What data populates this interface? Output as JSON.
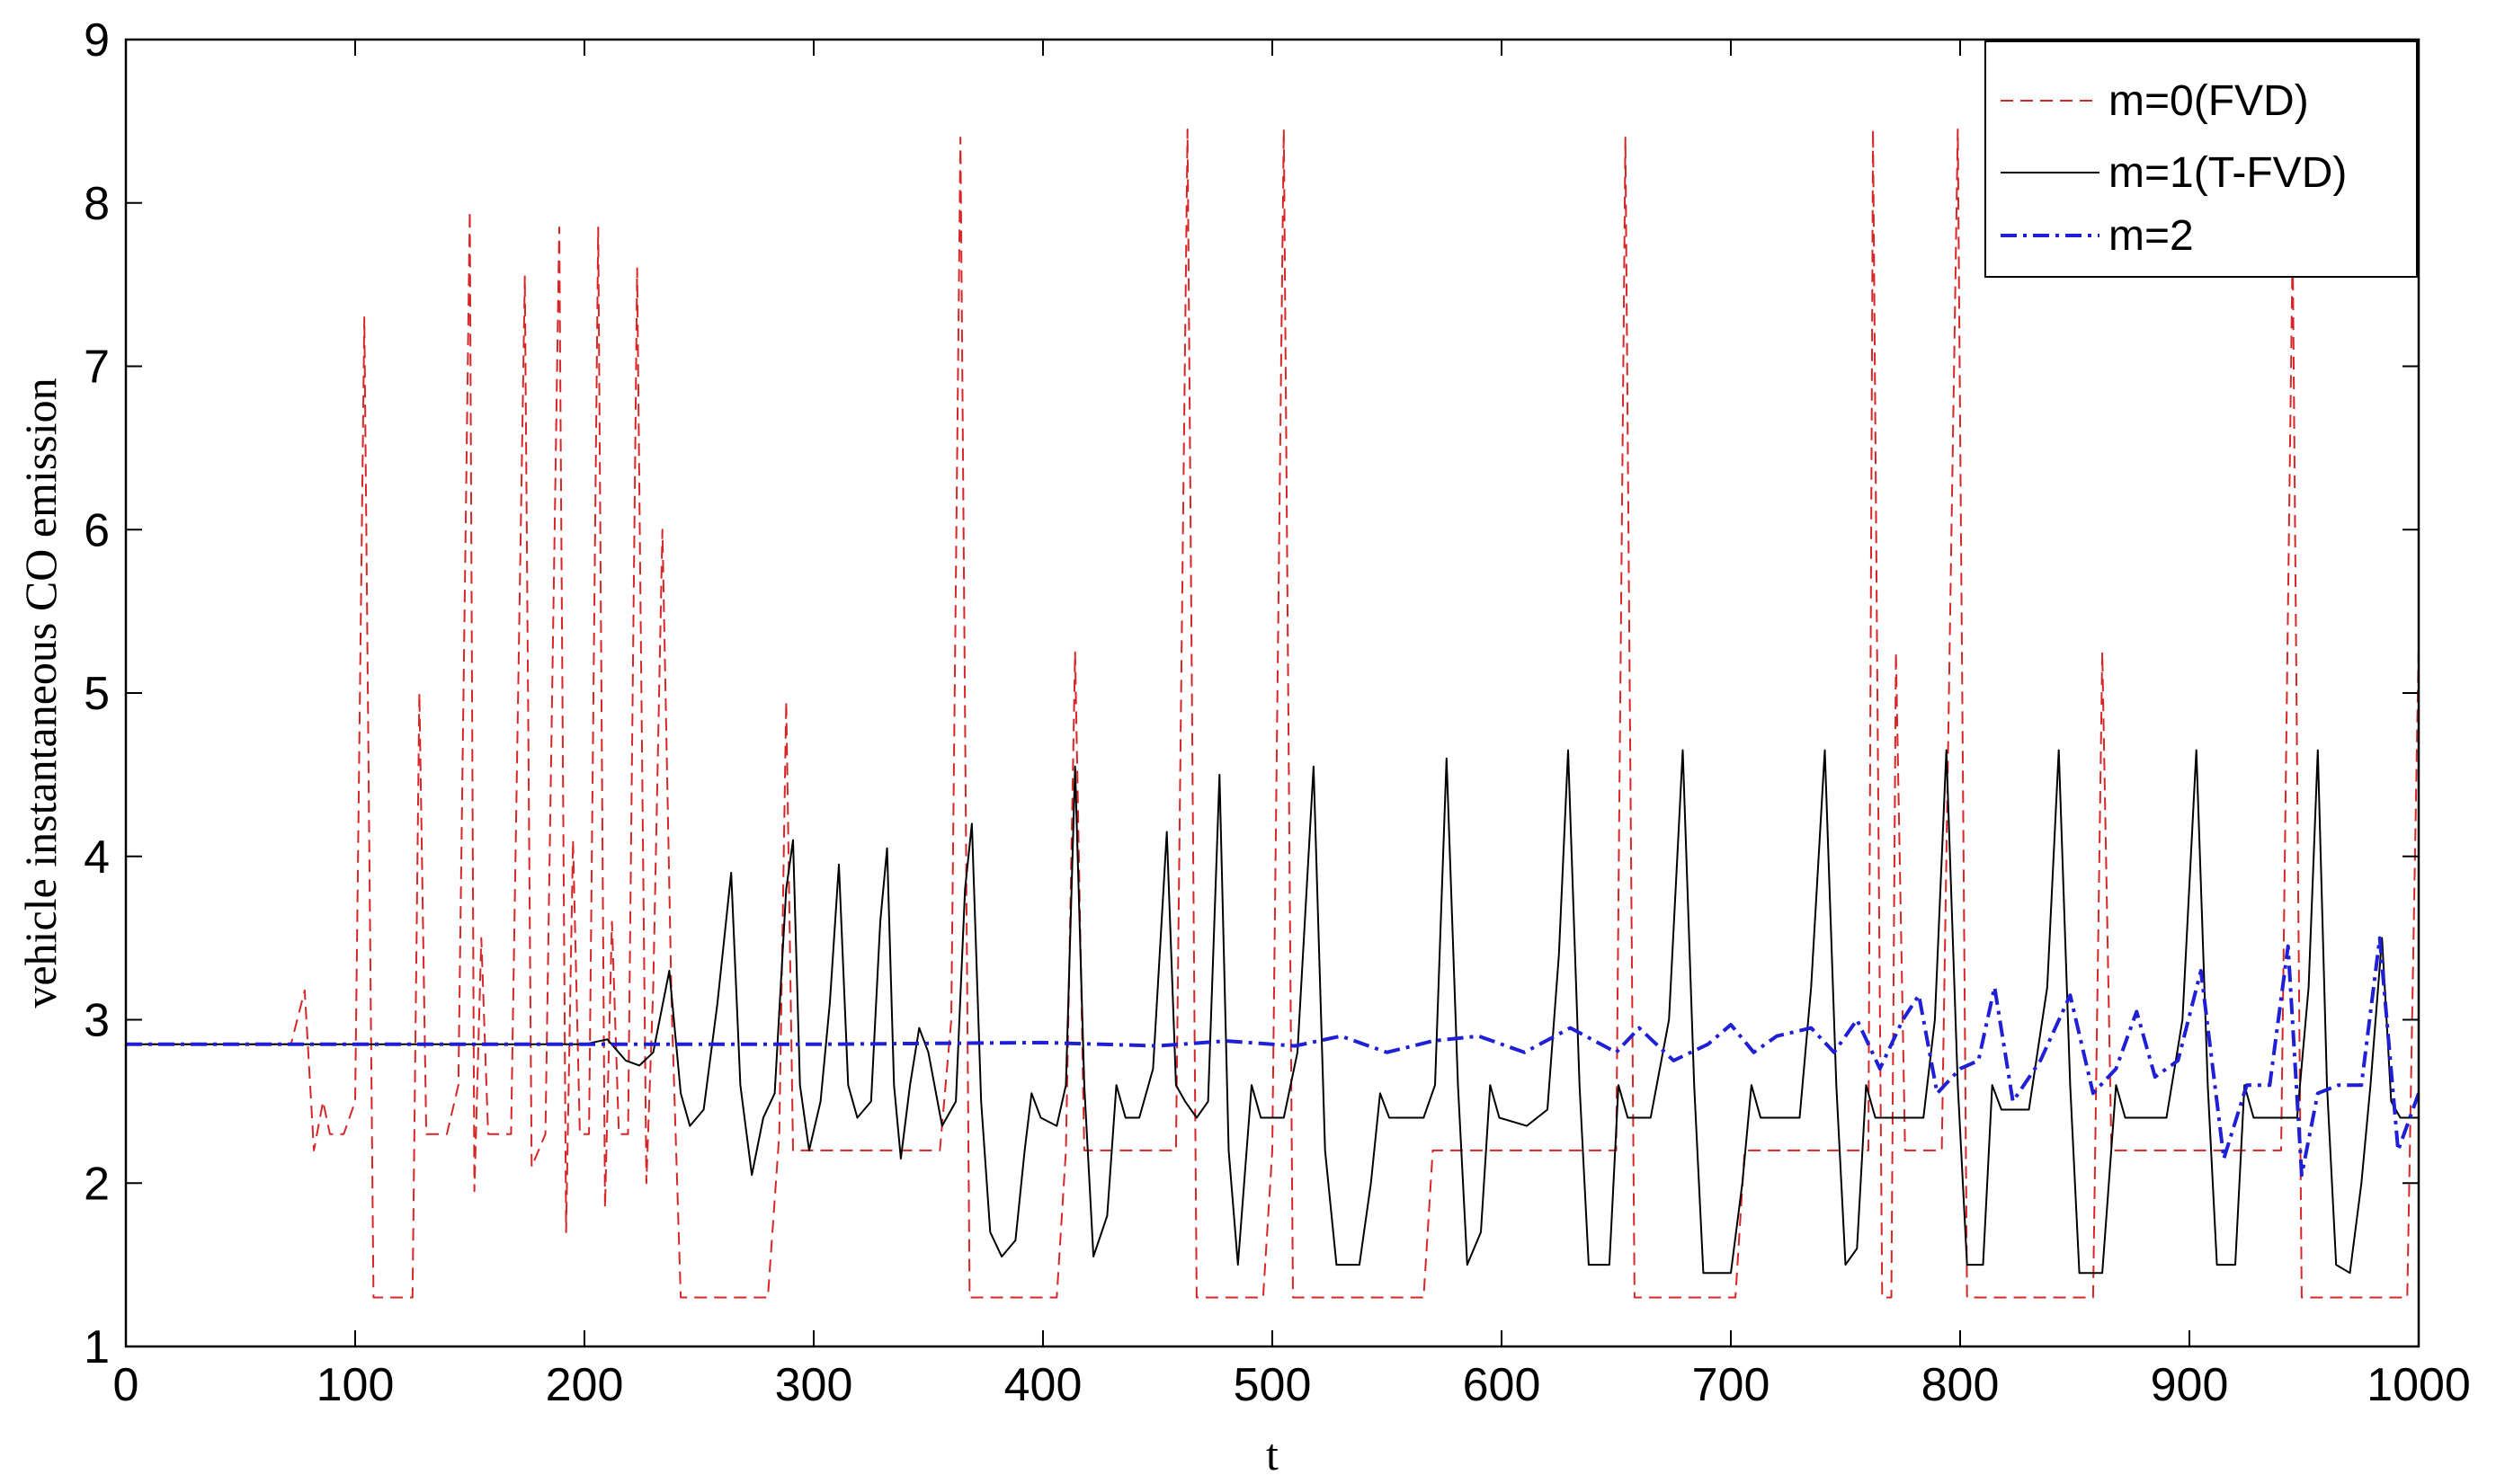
{
  "chart_data": {
    "type": "line",
    "title": "",
    "xlabel": "t",
    "ylabel": "vehicle instantaneous CO emission",
    "xlim": [
      0,
      1000
    ],
    "ylim": [
      1,
      9
    ],
    "xticks": [
      "0",
      "100",
      "200",
      "300",
      "400",
      "500",
      "600",
      "700",
      "800",
      "900",
      "1000"
    ],
    "yticks": [
      "1",
      "2",
      "3",
      "4",
      "5",
      "6",
      "7",
      "8",
      "9"
    ],
    "grid": false,
    "legend_position": "top-right",
    "series": [
      {
        "name": "m=0(FVD)",
        "color": "#d62728",
        "style": "dashed",
        "points": [
          [
            0,
            2.85
          ],
          [
            72,
            2.85
          ],
          [
            78,
            3.18
          ],
          [
            82,
            2.2
          ],
          [
            86,
            2.5
          ],
          [
            89,
            2.3
          ],
          [
            95,
            2.3
          ],
          [
            100,
            2.5
          ],
          [
            104,
            7.3
          ],
          [
            108,
            1.3
          ],
          [
            125,
            1.3
          ],
          [
            128,
            5.0
          ],
          [
            131,
            2.3
          ],
          [
            140,
            2.3
          ],
          [
            145,
            2.6
          ],
          [
            150,
            7.95
          ],
          [
            152,
            1.95
          ],
          [
            155,
            3.5
          ],
          [
            158,
            2.3
          ],
          [
            168,
            2.3
          ],
          [
            174,
            7.55
          ],
          [
            177,
            2.1
          ],
          [
            183,
            2.3
          ],
          [
            189,
            7.85
          ],
          [
            192,
            1.7
          ],
          [
            195,
            4.1
          ],
          [
            198,
            2.3
          ],
          [
            202,
            2.3
          ],
          [
            206,
            7.85
          ],
          [
            209,
            1.85
          ],
          [
            212,
            3.6
          ],
          [
            215,
            2.3
          ],
          [
            219,
            2.3
          ],
          [
            223,
            7.6
          ],
          [
            227,
            2.0
          ],
          [
            230,
            3.2
          ],
          [
            234,
            6.0
          ],
          [
            238,
            3.1
          ],
          [
            242,
            1.3
          ],
          [
            280,
            1.3
          ],
          [
            285,
            2.3
          ],
          [
            288,
            4.95
          ],
          [
            291,
            2.2
          ],
          [
            296,
            2.2
          ],
          [
            355,
            2.2
          ],
          [
            360,
            3.0
          ],
          [
            364,
            8.4
          ],
          [
            368,
            1.3
          ],
          [
            406,
            1.3
          ],
          [
            410,
            2.2
          ],
          [
            414,
            5.25
          ],
          [
            418,
            2.2
          ],
          [
            458,
            2.2
          ],
          [
            463,
            8.45
          ],
          [
            467,
            1.3
          ],
          [
            496,
            1.3
          ],
          [
            500,
            2.2
          ],
          [
            505,
            8.45
          ],
          [
            509,
            1.3
          ],
          [
            566,
            1.3
          ],
          [
            570,
            2.2
          ],
          [
            576,
            2.2
          ],
          [
            615,
            2.2
          ],
          [
            650,
            2.2
          ],
          [
            654,
            8.4
          ],
          [
            658,
            1.3
          ],
          [
            702,
            1.3
          ],
          [
            706,
            2.2
          ],
          [
            760,
            2.2
          ],
          [
            762,
            8.45
          ],
          [
            766,
            1.3
          ],
          [
            770,
            1.3
          ],
          [
            772,
            5.25
          ],
          [
            776,
            2.2
          ],
          [
            792,
            2.2
          ],
          [
            799,
            8.45
          ],
          [
            803,
            1.3
          ],
          [
            858,
            1.3
          ],
          [
            862,
            5.25
          ],
          [
            866,
            2.2
          ],
          [
            940,
            2.2
          ],
          [
            945,
            7.75
          ],
          [
            949,
            1.3
          ],
          [
            995,
            1.3
          ],
          [
            1000,
            5.3
          ]
        ]
      },
      {
        "name": "m=1(T-FVD)",
        "color": "#000000",
        "style": "solid",
        "points": [
          [
            0,
            2.85
          ],
          [
            200,
            2.85
          ],
          [
            210,
            2.88
          ],
          [
            218,
            2.75
          ],
          [
            224,
            2.72
          ],
          [
            230,
            2.8
          ],
          [
            237,
            3.3
          ],
          [
            242,
            2.55
          ],
          [
            246,
            2.35
          ],
          [
            252,
            2.45
          ],
          [
            258,
            3.1
          ],
          [
            264,
            3.9
          ],
          [
            268,
            2.6
          ],
          [
            273,
            2.05
          ],
          [
            278,
            2.4
          ],
          [
            283,
            2.55
          ],
          [
            288,
            3.8
          ],
          [
            291,
            4.1
          ],
          [
            294,
            2.6
          ],
          [
            298,
            2.2
          ],
          [
            303,
            2.5
          ],
          [
            307,
            3.1
          ],
          [
            311,
            3.95
          ],
          [
            315,
            2.6
          ],
          [
            319,
            2.4
          ],
          [
            325,
            2.5
          ],
          [
            329,
            3.6
          ],
          [
            332,
            4.05
          ],
          [
            335,
            2.6
          ],
          [
            338,
            2.15
          ],
          [
            342,
            2.6
          ],
          [
            346,
            2.95
          ],
          [
            350,
            2.8
          ],
          [
            356,
            2.35
          ],
          [
            362,
            2.5
          ],
          [
            366,
            3.8
          ],
          [
            369,
            4.2
          ],
          [
            373,
            2.5
          ],
          [
            377,
            1.7
          ],
          [
            382,
            1.55
          ],
          [
            388,
            1.65
          ],
          [
            392,
            2.2
          ],
          [
            395,
            2.55
          ],
          [
            399,
            2.4
          ],
          [
            406,
            2.35
          ],
          [
            410,
            2.6
          ],
          [
            414,
            4.55
          ],
          [
            418,
            2.6
          ],
          [
            422,
            1.55
          ],
          [
            428,
            1.8
          ],
          [
            432,
            2.6
          ],
          [
            436,
            2.4
          ],
          [
            442,
            2.4
          ],
          [
            448,
            2.7
          ],
          [
            454,
            4.15
          ],
          [
            458,
            2.6
          ],
          [
            462,
            2.5
          ],
          [
            467,
            2.4
          ],
          [
            472,
            2.5
          ],
          [
            477,
            4.5
          ],
          [
            481,
            2.2
          ],
          [
            485,
            1.5
          ],
          [
            491,
            2.6
          ],
          [
            495,
            2.4
          ],
          [
            505,
            2.4
          ],
          [
            511,
            2.8
          ],
          [
            518,
            4.55
          ],
          [
            523,
            2.2
          ],
          [
            528,
            1.5
          ],
          [
            538,
            1.5
          ],
          [
            543,
            2.0
          ],
          [
            547,
            2.55
          ],
          [
            551,
            2.4
          ],
          [
            566,
            2.4
          ],
          [
            571,
            2.6
          ],
          [
            576,
            4.6
          ],
          [
            581,
            2.6
          ],
          [
            585,
            1.5
          ],
          [
            591,
            1.7
          ],
          [
            595,
            2.6
          ],
          [
            599,
            2.4
          ],
          [
            611,
            2.35
          ],
          [
            620,
            2.45
          ],
          [
            625,
            3.4
          ],
          [
            629,
            4.65
          ],
          [
            634,
            2.6
          ],
          [
            638,
            1.5
          ],
          [
            647,
            1.5
          ],
          [
            651,
            2.6
          ],
          [
            655,
            2.4
          ],
          [
            665,
            2.4
          ],
          [
            673,
            3.0
          ],
          [
            679,
            4.65
          ],
          [
            684,
            2.6
          ],
          [
            688,
            1.45
          ],
          [
            700,
            1.45
          ],
          [
            705,
            2.0
          ],
          [
            709,
            2.6
          ],
          [
            713,
            2.4
          ],
          [
            730,
            2.4
          ],
          [
            735,
            3.2
          ],
          [
            741,
            4.65
          ],
          [
            746,
            2.6
          ],
          [
            750,
            1.5
          ],
          [
            755,
            1.6
          ],
          [
            759,
            2.6
          ],
          [
            763,
            2.4
          ],
          [
            784,
            2.4
          ],
          [
            789,
            3.0
          ],
          [
            794,
            4.65
          ],
          [
            799,
            2.6
          ],
          [
            803,
            1.5
          ],
          [
            810,
            1.5
          ],
          [
            814,
            2.6
          ],
          [
            818,
            2.45
          ],
          [
            830,
            2.45
          ],
          [
            838,
            3.2
          ],
          [
            843,
            4.65
          ],
          [
            848,
            2.6
          ],
          [
            852,
            1.45
          ],
          [
            862,
            1.45
          ],
          [
            868,
            2.6
          ],
          [
            872,
            2.4
          ],
          [
            890,
            2.4
          ],
          [
            897,
            3.0
          ],
          [
            903,
            4.65
          ],
          [
            908,
            2.6
          ],
          [
            912,
            1.5
          ],
          [
            920,
            1.5
          ],
          [
            924,
            2.6
          ],
          [
            928,
            2.4
          ],
          [
            947,
            2.4
          ],
          [
            952,
            3.2
          ],
          [
            956,
            4.65
          ],
          [
            960,
            2.6
          ],
          [
            964,
            1.5
          ],
          [
            970,
            1.45
          ],
          [
            975,
            2.0
          ],
          [
            979,
            2.6
          ],
          [
            984,
            3.5
          ],
          [
            988,
            2.5
          ],
          [
            992,
            2.4
          ],
          [
            1000,
            2.4
          ]
        ]
      },
      {
        "name": "m=2",
        "color": "#1f1fd6",
        "style": "dashdot",
        "points": [
          [
            0,
            2.85
          ],
          [
            200,
            2.85
          ],
          [
            300,
            2.85
          ],
          [
            400,
            2.86
          ],
          [
            450,
            2.84
          ],
          [
            480,
            2.87
          ],
          [
            510,
            2.84
          ],
          [
            530,
            2.9
          ],
          [
            550,
            2.8
          ],
          [
            570,
            2.87
          ],
          [
            590,
            2.9
          ],
          [
            610,
            2.8
          ],
          [
            630,
            2.95
          ],
          [
            650,
            2.8
          ],
          [
            660,
            2.95
          ],
          [
            675,
            2.75
          ],
          [
            690,
            2.85
          ],
          [
            700,
            2.97
          ],
          [
            710,
            2.8
          ],
          [
            720,
            2.9
          ],
          [
            735,
            2.95
          ],
          [
            745,
            2.8
          ],
          [
            755,
            3.0
          ],
          [
            765,
            2.7
          ],
          [
            775,
            3.0
          ],
          [
            782,
            3.15
          ],
          [
            790,
            2.55
          ],
          [
            800,
            2.7
          ],
          [
            808,
            2.75
          ],
          [
            815,
            3.2
          ],
          [
            823,
            2.5
          ],
          [
            835,
            2.75
          ],
          [
            848,
            3.15
          ],
          [
            858,
            2.55
          ],
          [
            868,
            2.7
          ],
          [
            877,
            3.05
          ],
          [
            885,
            2.65
          ],
          [
            895,
            2.75
          ],
          [
            905,
            3.3
          ],
          [
            915,
            2.15
          ],
          [
            925,
            2.6
          ],
          [
            935,
            2.6
          ],
          [
            943,
            3.45
          ],
          [
            949,
            2.05
          ],
          [
            956,
            2.55
          ],
          [
            965,
            2.6
          ],
          [
            975,
            2.6
          ],
          [
            983,
            3.5
          ],
          [
            991,
            2.2
          ],
          [
            1000,
            2.55
          ]
        ]
      }
    ]
  }
}
